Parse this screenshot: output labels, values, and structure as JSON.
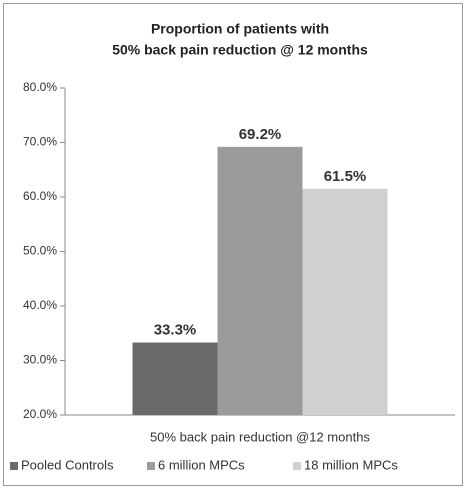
{
  "chart_data": {
    "type": "bar",
    "title": [
      "Proportion of patients with",
      "50% back pain reduction @ 12 months"
    ],
    "categories": [
      "50% back pain reduction @12 months"
    ],
    "series": [
      {
        "name": "Pooled Controls",
        "color": "#6a6a6a",
        "values": [
          33.3
        ],
        "value_labels": [
          "33.3%"
        ]
      },
      {
        "name": "6 million MPCs",
        "color": "#9b9b9b",
        "values": [
          69.2
        ],
        "value_labels": [
          "69.2%"
        ]
      },
      {
        "name": "18 million MPCs",
        "color": "#d0d0d0",
        "values": [
          61.5
        ],
        "value_labels": [
          "61.5%"
        ]
      }
    ],
    "ylim": [
      20,
      80
    ],
    "yticks": [
      {
        "value": 20,
        "label": "20.0%"
      },
      {
        "value": 30,
        "label": "30.0%"
      },
      {
        "value": 40,
        "label": "40.0%"
      },
      {
        "value": 50,
        "label": "50.0%"
      },
      {
        "value": 60,
        "label": "60.0%"
      },
      {
        "value": 70,
        "label": "70.0%"
      },
      {
        "value": 80,
        "label": "80.0%"
      }
    ],
    "grid": false,
    "legend": "bottom"
  }
}
